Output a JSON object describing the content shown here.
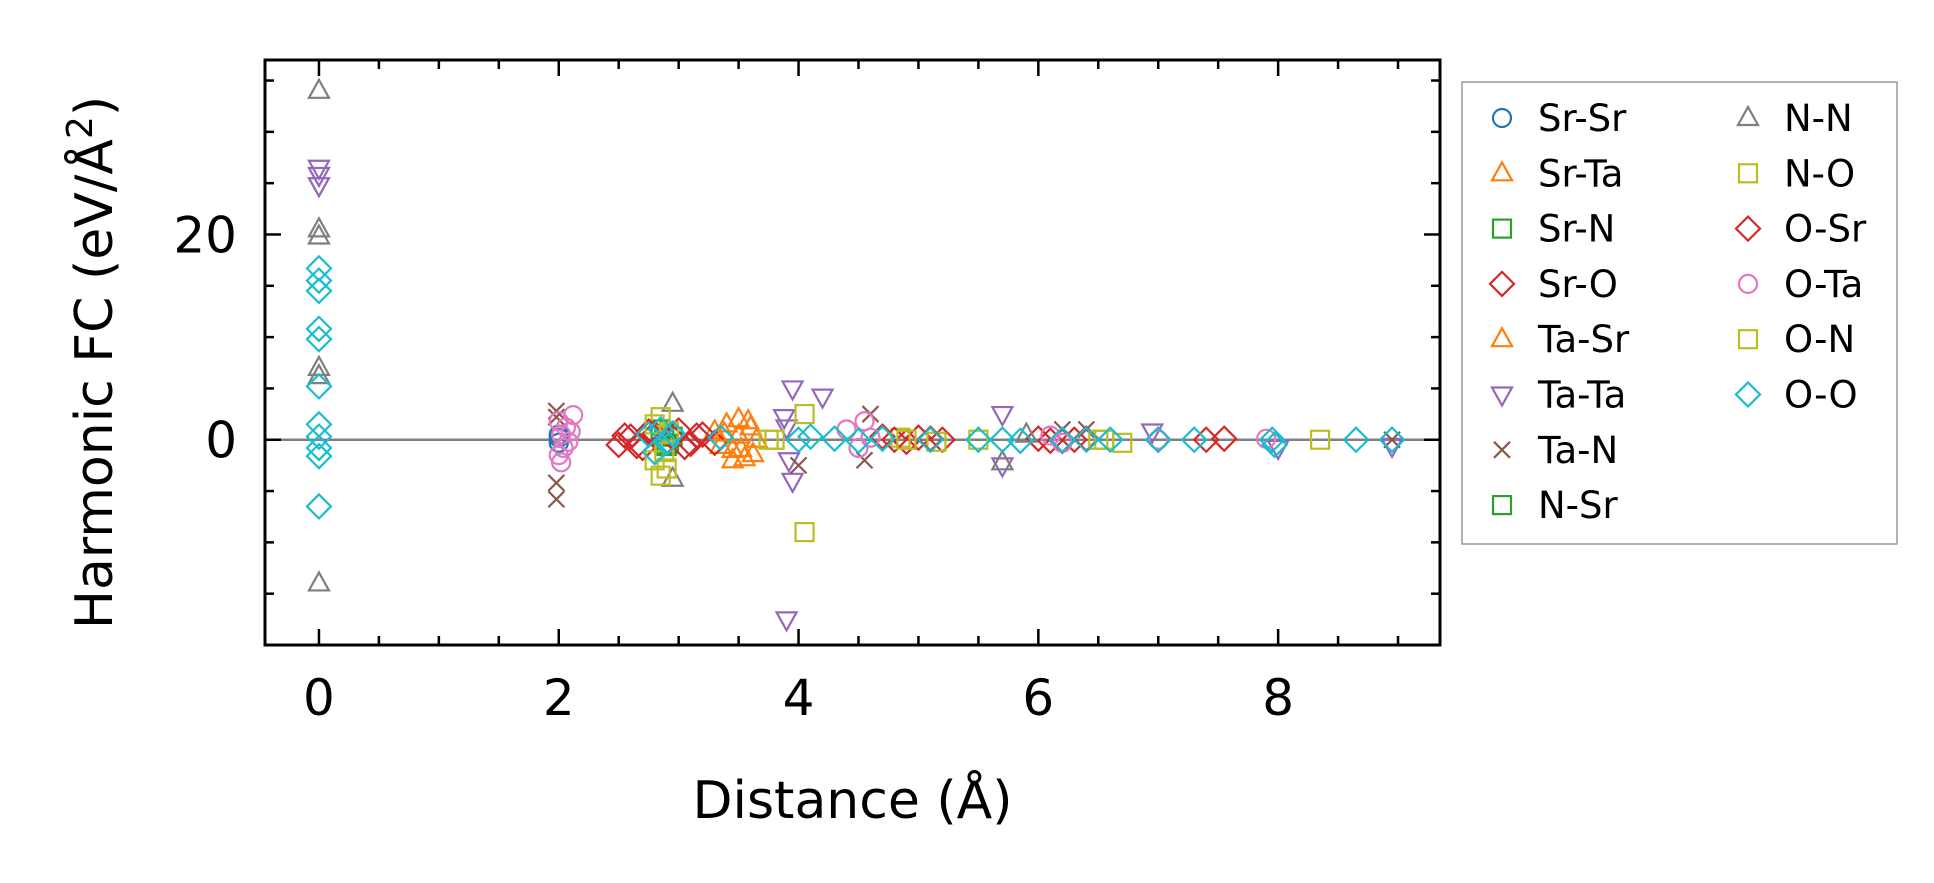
{
  "chart_data": {
    "type": "scatter",
    "title": "",
    "xlabel": "Distance (Å)",
    "ylabel_main": "Harmonic FC (eV/Å",
    "ylabel_sup": "2",
    "ylabel_end": ")",
    "xlim": [
      -0.45,
      9.35
    ],
    "ylim": [
      -20,
      37
    ],
    "xticks": [
      0,
      2,
      4,
      6,
      8
    ],
    "xtick_labels": [
      "0",
      "2",
      "4",
      "6",
      "8"
    ],
    "yticks": [
      0,
      20
    ],
    "ytick_labels": [
      "0",
      "20"
    ],
    "zero_line": true,
    "grid": false,
    "legend_position": "outside-right",
    "series": [
      {
        "name": "Sr-Sr",
        "marker": "circle",
        "color": "#1f77b4",
        "points": [
          [
            2.0,
            0.2
          ],
          [
            2.0,
            -0.3
          ],
          [
            2.0,
            0.5
          ]
        ]
      },
      {
        "name": "Sr-Ta",
        "marker": "triangle-up",
        "color": "#ff7f0e",
        "points": [
          [
            3.3,
            0.8
          ],
          [
            3.35,
            -0.6
          ],
          [
            3.4,
            1.5
          ],
          [
            3.45,
            -1.0
          ],
          [
            3.5,
            0.4
          ],
          [
            3.55,
            -1.8
          ],
          [
            3.6,
            1.2
          ],
          [
            3.5,
            2.0
          ],
          [
            3.45,
            -2.0
          ],
          [
            3.65,
            0.0
          ]
        ]
      },
      {
        "name": "Sr-N",
        "marker": "square",
        "color": "#2ca02c",
        "points": [
          [
            2.85,
            1.0
          ],
          [
            2.9,
            -0.6
          ],
          [
            2.95,
            0.3
          ]
        ]
      },
      {
        "name": "Sr-O",
        "marker": "diamond",
        "color": "#d62728",
        "points": [
          [
            2.5,
            -0.5
          ],
          [
            2.6,
            0.3
          ],
          [
            2.7,
            -0.8
          ],
          [
            2.8,
            0.6
          ],
          [
            2.9,
            -0.2
          ],
          [
            3.0,
            0.9
          ],
          [
            3.1,
            -0.4
          ],
          [
            3.2,
            0.5
          ],
          [
            3.3,
            -0.3
          ],
          [
            4.7,
            0.3
          ],
          [
            4.9,
            -0.2
          ],
          [
            5.0,
            0.2
          ],
          [
            5.2,
            0.0
          ],
          [
            6.0,
            0.1
          ],
          [
            6.2,
            -0.1
          ],
          [
            6.4,
            0.1
          ],
          [
            7.0,
            0.0
          ],
          [
            7.55,
            0.1
          ]
        ]
      },
      {
        "name": "Ta-Sr",
        "marker": "triangle-up",
        "color": "#ff7f0e",
        "points": [
          [
            3.38,
            0.6
          ],
          [
            3.52,
            -0.9
          ],
          [
            3.58,
            1.8
          ],
          [
            3.62,
            -1.4
          ]
        ]
      },
      {
        "name": "Ta-Ta",
        "marker": "triangle-down",
        "color": "#9467bd",
        "points": [
          [
            0.0,
            26.5
          ],
          [
            0.0,
            25.8
          ],
          [
            0.0,
            24.8
          ],
          [
            3.88,
            2.2
          ],
          [
            3.9,
            1.2
          ],
          [
            3.92,
            -2.0
          ],
          [
            3.95,
            -4.0
          ],
          [
            3.95,
            5.0
          ],
          [
            3.9,
            -17.5
          ],
          [
            4.2,
            4.2
          ],
          [
            5.7,
            2.5
          ],
          [
            5.7,
            -2.5
          ],
          [
            6.95,
            0.8
          ],
          [
            8.0,
            -0.8
          ],
          [
            8.95,
            -0.6
          ]
        ]
      },
      {
        "name": "Ta-N",
        "marker": "cross",
        "color": "#8c564b",
        "points": [
          [
            1.98,
            2.8
          ],
          [
            1.98,
            2.2
          ],
          [
            1.98,
            -5.8
          ],
          [
            1.98,
            -4.2
          ],
          [
            4.0,
            -2.5
          ],
          [
            4.55,
            -2.0
          ],
          [
            4.6,
            2.5
          ],
          [
            6.2,
            1.0
          ],
          [
            6.4,
            1.0
          ],
          [
            8.95,
            0.0
          ]
        ]
      },
      {
        "name": "N-Sr",
        "marker": "square",
        "color": "#2ca02c",
        "points": [
          [
            2.88,
            0.5
          ],
          [
            2.92,
            -0.4
          ]
        ]
      },
      {
        "name": "N-N",
        "marker": "triangle-up",
        "color": "#7f7f7f",
        "points": [
          [
            0.0,
            34.0
          ],
          [
            0.0,
            20.5
          ],
          [
            0.0,
            19.8
          ],
          [
            0.0,
            7.0
          ],
          [
            0.0,
            6.2
          ],
          [
            0.0,
            -14.0
          ],
          [
            2.95,
            3.5
          ],
          [
            2.95,
            -3.8
          ],
          [
            5.7,
            -2.2
          ],
          [
            5.9,
            0.5
          ]
        ]
      },
      {
        "name": "N-O",
        "marker": "square",
        "color": "#bcbd22",
        "points": [
          [
            2.85,
            2.2
          ],
          [
            2.85,
            -3.5
          ],
          [
            2.9,
            -2.8
          ],
          [
            4.05,
            2.5
          ],
          [
            4.05,
            -9.0
          ],
          [
            3.75,
            0.0
          ],
          [
            4.85,
            0.2
          ],
          [
            5.15,
            -0.2
          ],
          [
            6.55,
            0.0
          ],
          [
            6.7,
            -0.3
          ],
          [
            8.35,
            0.0
          ]
        ]
      },
      {
        "name": "O-Sr",
        "marker": "diamond",
        "color": "#d62728",
        "points": [
          [
            2.55,
            0.4
          ],
          [
            2.65,
            -0.6
          ],
          [
            2.75,
            0.8
          ],
          [
            2.95,
            0.2
          ],
          [
            3.05,
            -0.7
          ],
          [
            3.15,
            0.4
          ],
          [
            4.8,
            0.0
          ],
          [
            5.1,
            0.1
          ],
          [
            6.1,
            -0.1
          ],
          [
            6.3,
            0.0
          ],
          [
            7.4,
            0.0
          ]
        ]
      },
      {
        "name": "O-Ta",
        "marker": "circle",
        "color": "#e377c2",
        "points": [
          [
            2.0,
            -1.5
          ],
          [
            2.02,
            0.5
          ],
          [
            2.04,
            -0.8
          ],
          [
            2.06,
            1.2
          ],
          [
            2.08,
            -0.2
          ],
          [
            2.1,
            0.8
          ],
          [
            2.12,
            2.4
          ],
          [
            2.0,
            1.8
          ],
          [
            2.02,
            -2.2
          ],
          [
            4.4,
            1.0
          ],
          [
            4.5,
            -0.8
          ],
          [
            4.55,
            1.8
          ],
          [
            4.6,
            0.2
          ],
          [
            6.1,
            0.4
          ],
          [
            6.2,
            -0.3
          ],
          [
            7.0,
            0.0
          ],
          [
            7.9,
            0.1
          ]
        ]
      },
      {
        "name": "O-N",
        "marker": "square",
        "color": "#bcbd22",
        "points": [
          [
            2.8,
            1.5
          ],
          [
            2.8,
            -2.0
          ],
          [
            2.88,
            -1.2
          ],
          [
            2.92,
            0.8
          ],
          [
            3.8,
            0.0
          ],
          [
            4.9,
            0.0
          ],
          [
            5.5,
            0.0
          ],
          [
            6.5,
            0.0
          ]
        ]
      },
      {
        "name": "O-O",
        "marker": "diamond",
        "color": "#17becf",
        "points": [
          [
            0.0,
            16.7
          ],
          [
            0.0,
            15.5
          ],
          [
            0.0,
            14.5
          ],
          [
            0.0,
            10.8
          ],
          [
            0.0,
            9.8
          ],
          [
            0.0,
            5.2
          ],
          [
            0.0,
            1.5
          ],
          [
            0.0,
            0.3
          ],
          [
            0.0,
            -0.8
          ],
          [
            0.0,
            -1.6
          ],
          [
            0.0,
            -6.5
          ],
          [
            2.75,
            0.5
          ],
          [
            2.8,
            -1.2
          ],
          [
            2.85,
            1.0
          ],
          [
            2.9,
            -0.3
          ],
          [
            2.95,
            0.6
          ],
          [
            3.35,
            0.2
          ],
          [
            4.0,
            0.0
          ],
          [
            4.1,
            0.3
          ],
          [
            4.3,
            0.1
          ],
          [
            4.5,
            -0.1
          ],
          [
            4.7,
            0.1
          ],
          [
            5.1,
            0.0
          ],
          [
            5.5,
            0.0
          ],
          [
            5.7,
            0.0
          ],
          [
            5.85,
            -0.1
          ],
          [
            6.2,
            0.0
          ],
          [
            6.4,
            0.0
          ],
          [
            6.6,
            0.0
          ],
          [
            7.0,
            0.0
          ],
          [
            7.3,
            0.0
          ],
          [
            7.95,
            0.0
          ],
          [
            7.97,
            -0.5
          ],
          [
            8.65,
            0.0
          ],
          [
            8.95,
            0.0
          ]
        ]
      }
    ]
  }
}
